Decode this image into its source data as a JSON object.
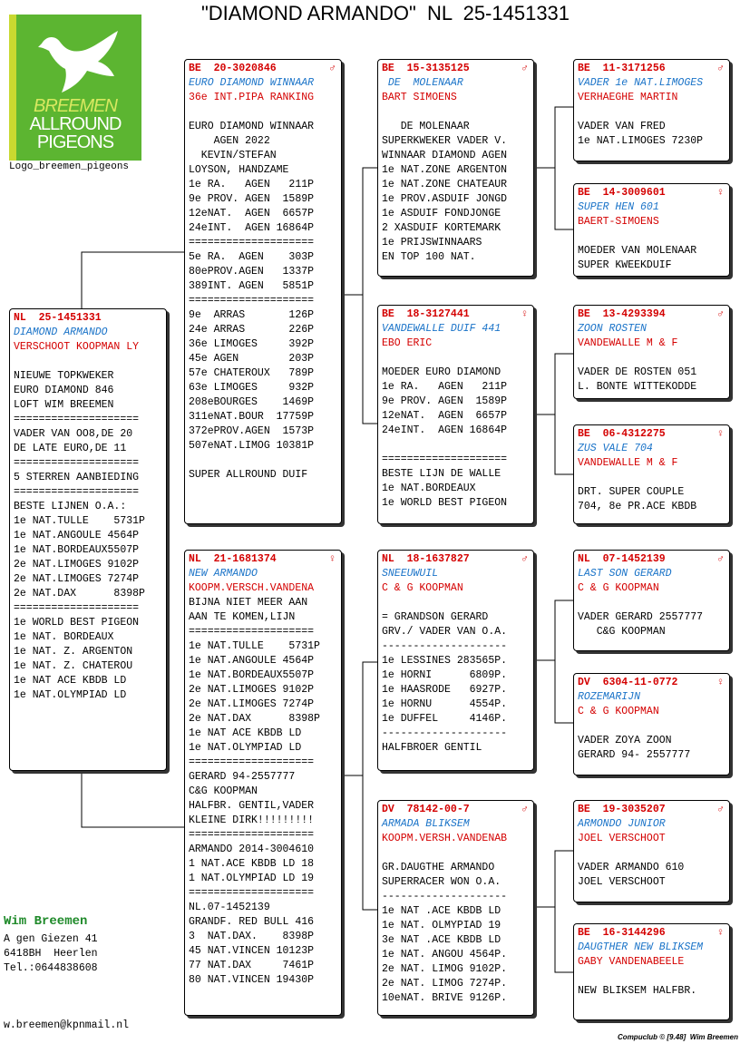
{
  "title": "\"DIAMOND ARMANDO\"  NL  25-1451331",
  "logo": {
    "line1": "BREEMEN",
    "line2": "ALLROUND",
    "line3": "PIGEONS",
    "caption": "Logo_breemen_pigeons"
  },
  "contact": {
    "name": "Wim Breemen",
    "address": "A gen Giezen 41",
    "city": "6418BH  Heerlen",
    "phone": "Tel.:0644838608",
    "email": "w.breemen@kpnmail.nl"
  },
  "footer": "Compuclub © [9.48]  Wim Breemen",
  "cards": [
    {
      "ring": "NL  25-1451331",
      "name": "DIAMOND ARMANDO",
      "owner": "VERSCHOOT KOOPMAN LY",
      "blocks": [
        [
          "NIEUWE TOPKWEKER",
          "EURO DIAMOND 846",
          "LOFT WIM BREEMEN",
          "====================",
          "VADER VAN OO8,DE 20",
          "DE LATE EURO,DE 11",
          "====================",
          "5 STERREN AANBIEDING",
          "====================",
          "BESTE LIJNEN O.A.:",
          "1e NAT.TULLE    5731P",
          "1e NAT.ANGOULE 4564P",
          "1e NAT.BORDEAUX5507P",
          "2e NAT.LIMOGES 9102P",
          "2e NAT.LIMOGES 7274P",
          "2e NAT.DAX      8398P",
          "====================",
          "1e WORLD BEST PIGEON",
          "1e NAT. BORDEAUX",
          "1e NAT. Z. ARGENTON",
          "1e NAT. Z. CHATEROU",
          "1e NAT ACE KBDB LD",
          "1e NAT.OLYMPIAD LD"
        ]
      ]
    },
    {
      "ring": "BE  20-3020846",
      "sex": "♂",
      "name": "EURO DIAMOND WINNAAR",
      "owner": "36e INT.PIPA RANKING",
      "blocks": [
        [
          "EURO DIAMOND WINNAAR",
          "    AGEN 2022",
          "  KEVIN/STEFAN",
          "LOYSON, HANDZAME",
          "1e RA.   AGEN   211P",
          "9e PROV. AGEN  1589P",
          "12eNAT.  AGEN  6657P",
          "24eINT.  AGEN 16864P",
          "====================",
          "5e RA.  AGEN    303P",
          "80ePROV.AGEN   1337P",
          "389INT. AGEN   5851P",
          "====================",
          "9e  ARRAS       126P",
          "24e ARRAS       226P",
          "36e LIMOGES     392P",
          "45e AGEN        203P",
          "57e CHATEROUX   789P",
          "63e LIMOGES     932P",
          "208eBOURGES    1469P",
          "311eNAT.BOUR  17759P",
          "372ePROV.AGEN  1573P",
          "507eNAT.LIMOG 10381P"
        ],
        [
          "SUPER ALLROUND DUIF"
        ]
      ]
    },
    {
      "ring": "NL  21-1681374",
      "sex": "♀",
      "name": "NEW ARMANDO",
      "owner": "KOOPM.VERSCH.VANDENA",
      "blocks": [
        [
          "BIJNA NIET MEER AAN",
          "AAN TE KOMEN,LIJN",
          "====================",
          "1e NAT.TULLE    5731P",
          "1e NAT.ANGOULE 4564P",
          "1e NAT.BORDEAUX5507P",
          "2e NAT.LIMOGES 9102P",
          "2e NAT.LIMOGES 7274P",
          "2e NAT.DAX      8398P",
          "1e NAT ACE KBDB LD",
          "1e NAT.OLYMPIAD LD",
          "====================",
          "GERARD 94-2557777",
          "C&G KOOPMAN",
          "HALFBR. GENTIL,VADER",
          "KLEINE DIRK!!!!!!!!!",
          "====================",
          "ARMANDO 2014-3004610",
          "1 NAT.ACE KBDB LD 18",
          "1 NAT.OLYMPIAD LD 19",
          "====================",
          "NL.07-1452139",
          "GRANDF. RED BULL 416",
          "3  NAT.DAX.    8398P",
          "45 NAT.VINCEN 10123P",
          "77 NAT.DAX     7461P",
          "80 NAT.VINCEN 19430P"
        ]
      ]
    },
    {
      "ring": "BE  15-3135125",
      "sex": "♂",
      "name": " DE  MOLENAAR",
      "owner": "BART SIMOENS",
      "blocks": [
        [
          "   DE MOLENAAR",
          "SUPERKWEKER VADER V.",
          "WINNAAR DIAMOND AGEN",
          "1e NAT.ZONE ARGENTON",
          "1e NAT.ZONE CHATEAUR",
          "1e PROV.ASDUIF JONGD",
          "1e ASDUIF FONDJONGE",
          "2 XASDUIF KORTEMARK",
          "1e PRIJSWINNAARS",
          "EN TOP 100 NAT."
        ]
      ]
    },
    {
      "ring": "BE  18-3127441",
      "sex": "♀",
      "name": "VANDEWALLE DUIF 441",
      "owner": "EBO ERIC",
      "blocks": [
        [
          "MOEDER EURO DIAMOND",
          "1e RA.   AGEN   211P",
          "9e PROV. AGEN  1589P",
          "12eNAT.  AGEN  6657P",
          "24eINT.  AGEN 16864P"
        ],
        [
          "====================",
          "BESTE LIJN DE WALLE",
          "1e NAT.BORDEAUX",
          "1e WORLD BEST PIGEON"
        ]
      ]
    },
    {
      "ring": "NL  18-1637827",
      "sex": "♂",
      "name": "SNEEUWUIL",
      "owner": "C & G KOOPMAN",
      "blocks": [
        [
          "= GRANDSON GERARD",
          "GRV./ VADER VAN O.A.",
          "--------------------",
          "1e LESSINES 283565P.",
          "1e HORNI      6809P.",
          "1e HAASRODE   6927P.",
          "1e HORNU      4554P.",
          "1e DUFFEL     4146P.",
          "--------------------",
          "HALFBROER GENTIL"
        ]
      ]
    },
    {
      "ring": "DV  78142-00-7",
      "sex": "♂",
      "name": "ARMADA BLIKSEM",
      "owner": "KOOPM.VERSH.VANDENAB",
      "blocks": [
        [
          "GR.DAUGTHE ARMANDO",
          "SUPERRACER WON O.A.",
          "--------------------",
          "1e NAT .ACE KBDB LD",
          "1e NAT. OLMYPIAD 19",
          "3e NAT .ACE KBDB LD",
          "1e NAT. ANGOU 4564P.",
          "2e NAT. LIMOG 9102P.",
          "2e NAT. LIMOG 7274P.",
          "10eNAT. BRIVE 9126P."
        ]
      ]
    },
    {
      "ring": "BE  11-3171256",
      "sex": "♂",
      "name": "VADER 1e NAT.LIMOGES",
      "owner": "VERHAEGHE MARTIN",
      "blocks": [
        [
          "VADER VAN FRED",
          "1e NAT.LIMOGES 7230P"
        ]
      ]
    },
    {
      "ring": "BE  14-3009601",
      "sex": "♀",
      "name": "SUPER HEN 601",
      "owner": "BAERT-SIMOENS",
      "blocks": [
        [
          "MOEDER VAN MOLENAAR",
          "SUPER KWEEKDUIF"
        ]
      ]
    },
    {
      "ring": "BE  13-4293394",
      "sex": "♂",
      "name": "ZOON ROSTEN",
      "owner": "VANDEWALLE M & F",
      "blocks": [
        [
          "VADER DE ROSTEN 051",
          "L. BONTE WITTEKODDE"
        ]
      ]
    },
    {
      "ring": "BE  06-4312275",
      "sex": "♀",
      "name": "ZUS VALE 704",
      "owner": "VANDEWALLE M & F",
      "blocks": [
        [
          "DRT. SUPER COUPLE",
          "704, 8e PR.ACE KBDB"
        ]
      ]
    },
    {
      "ring": "NL  07-1452139",
      "sex": "♂",
      "name": "LAST SON GERARD",
      "owner": "C & G KOOPMAN",
      "blocks": [
        [
          "VADER GERARD 2557777",
          "   C&G KOOPMAN"
        ]
      ]
    },
    {
      "ring": "DV  6304-11-0772",
      "sex": "♀",
      "name": "ROZEMARIJN",
      "owner": "C & G KOOPMAN",
      "blocks": [
        [
          "VADER ZOYA ZOON",
          "GERARD 94- 2557777"
        ]
      ]
    },
    {
      "ring": "BE  19-3035207",
      "sex": "♂",
      "name": "ARMONDO JUNIOR",
      "owner": "JOEL VERSCHOOT",
      "blocks": [
        [
          "VADER ARMANDO 610",
          "JOEL VERSCHOOT"
        ]
      ]
    },
    {
      "ring": "BE  16-3144296",
      "sex": "♀",
      "name": "DAUGTHER NEW BLIKSEM",
      "owner": "GABY VANDENABEELE",
      "blocks": [
        [
          "NEW BLIKSEM HALFBR."
        ]
      ]
    }
  ]
}
